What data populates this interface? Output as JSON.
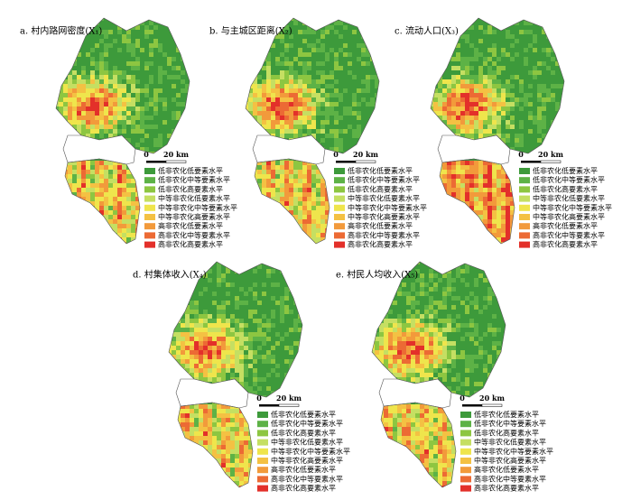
{
  "panels": [
    {
      "title": "a. 村内路网密度(X₁)",
      "scale": {
        "start": "0",
        "end": "20 km"
      }
    },
    {
      "title": "b. 与主城区距离(X₂)",
      "scale": {
        "start": "0",
        "end": "20 km"
      }
    },
    {
      "title": "c. 流动人口(X₃)",
      "scale": {
        "start": "0",
        "end": "20 km"
      }
    },
    {
      "title": "d. 村集体收入(X₄)",
      "scale": {
        "start": "0",
        "end": "20 km"
      }
    },
    {
      "title": "e. 村民人均收入(X₅)",
      "scale": {
        "start": "0",
        "end": "20 km"
      }
    }
  ],
  "legend": {
    "items": [
      {
        "label": "低非农化低要素水平",
        "color": "#3d9a3b"
      },
      {
        "label": "低非农化中等要素水平",
        "color": "#5db246"
      },
      {
        "label": "低非农化高要素水平",
        "color": "#8dc641"
      },
      {
        "label": "中等非农化低要素水平",
        "color": "#c5df62"
      },
      {
        "label": "中等非农化中等要素水平",
        "color": "#efe54c"
      },
      {
        "label": "中等非农化高要素水平",
        "color": "#f4c143"
      },
      {
        "label": "高非农化低要素水平",
        "color": "#f29a3b"
      },
      {
        "label": "高非农化中等要素水平",
        "color": "#ec6a34"
      },
      {
        "label": "高非农化高要素水平",
        "color": "#e3302a"
      }
    ]
  }
}
